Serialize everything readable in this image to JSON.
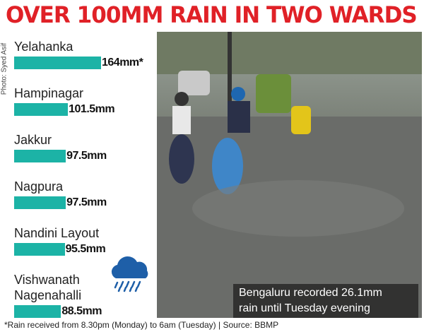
{
  "chart_data": {
    "type": "bar",
    "orientation": "horizontal",
    "title": "OVER 100MM RAIN IN TWO WARDS",
    "photo_credit": "Photo: Syed Asif",
    "categories": [
      "Yelahanka",
      "Hampinagar",
      "Jakkur",
      "Nagpura",
      "Nandini Layout",
      "Vishwanath Nagenahalli"
    ],
    "values": [
      164,
      101.5,
      97.5,
      97.5,
      95.5,
      88.5
    ],
    "value_labels": [
      "164mm*",
      "101.5mm",
      "97.5mm",
      "97.5mm",
      "95.5mm",
      "88.5mm"
    ],
    "color": "#1cb3a6",
    "photo_caption": [
      "Bengaluru recorded 26.1mm",
      "rain until Tuesday evening"
    ],
    "footnote": "*Rain received from 8.30pm (Monday) to 6am (Tuesday) | Source: BBMP"
  }
}
